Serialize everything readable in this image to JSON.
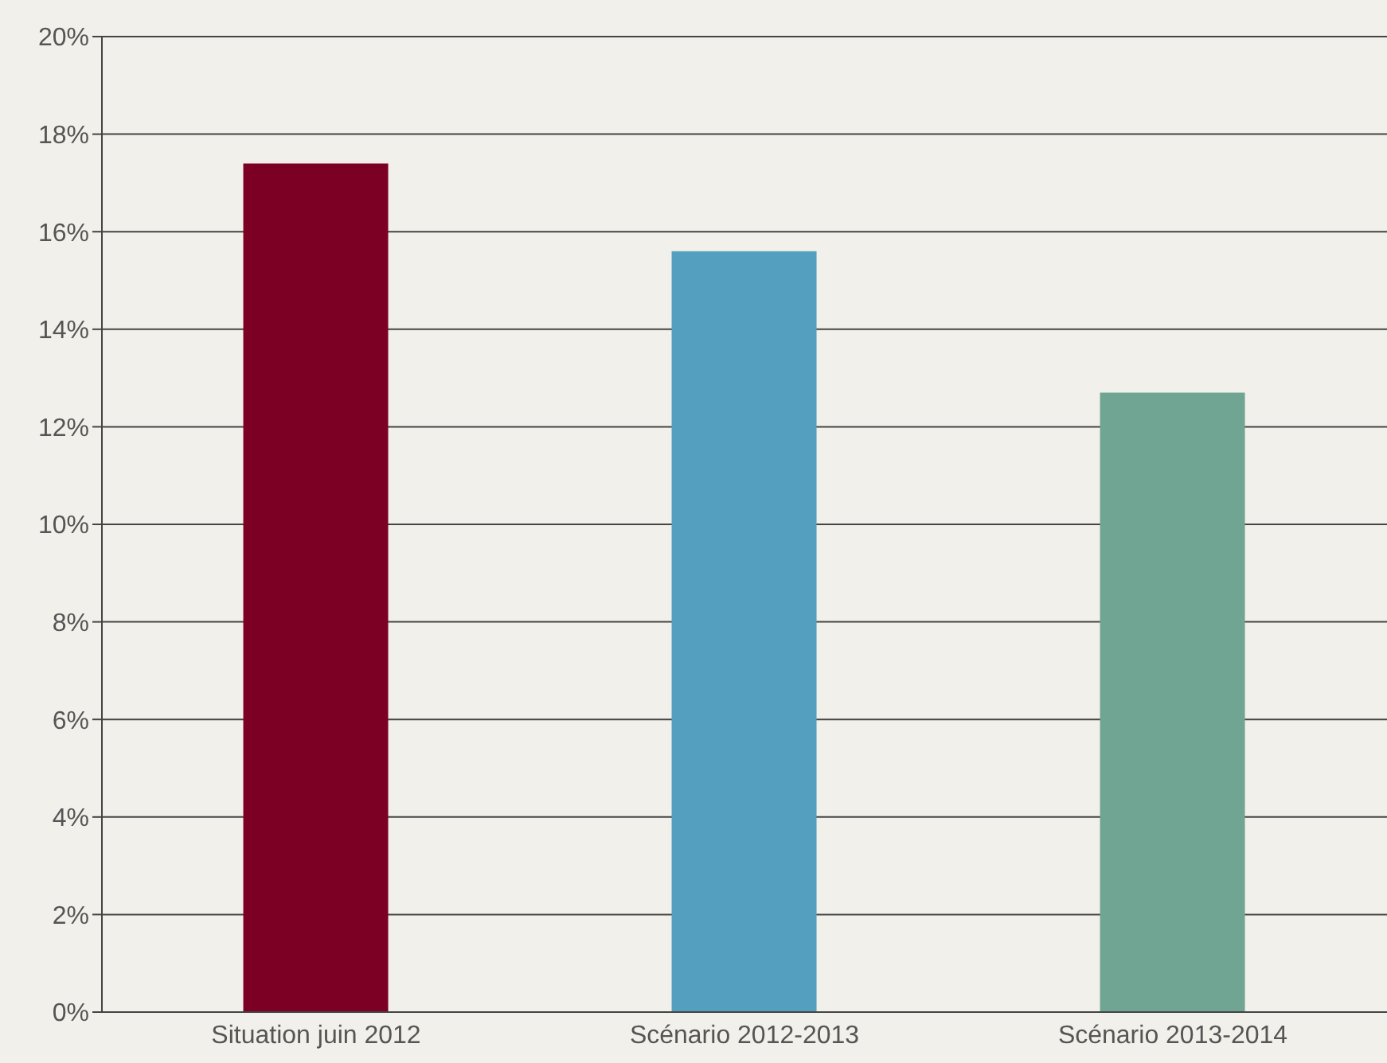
{
  "chart_data": {
    "type": "bar",
    "categories": [
      "Situation juin 2012",
      "Scénario 2012-2013",
      "Scénario 2013-2014"
    ],
    "values": [
      17.4,
      15.6,
      12.7
    ],
    "colors": [
      "#7c0024",
      "#549fbf",
      "#6fa592"
    ],
    "ylim": [
      0,
      20
    ],
    "yticks": [
      {
        "value": 0,
        "label": "0%"
      },
      {
        "value": 2,
        "label": "2%"
      },
      {
        "value": 4,
        "label": "4%"
      },
      {
        "value": 6,
        "label": "6%"
      },
      {
        "value": 8,
        "label": "8%"
      },
      {
        "value": 10,
        "label": "10%"
      },
      {
        "value": 12,
        "label": "12%"
      },
      {
        "value": 14,
        "label": "14%"
      },
      {
        "value": 16,
        "label": "16%"
      },
      {
        "value": 18,
        "label": "18%"
      },
      {
        "value": 20,
        "label": "20%"
      }
    ],
    "grid": "y"
  }
}
